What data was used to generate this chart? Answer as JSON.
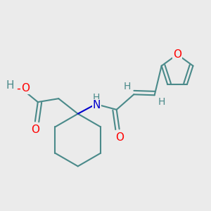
{
  "bg_color": "#ebebeb",
  "bond_color": "#4a8a8a",
  "bond_lw": 1.5,
  "atom_colors": {
    "O": "#ff0000",
    "N": "#0000cc",
    "C": "#4a8a8a",
    "H": "#4a8a8a"
  },
  "font_size": 11,
  "font_size_h": 10
}
